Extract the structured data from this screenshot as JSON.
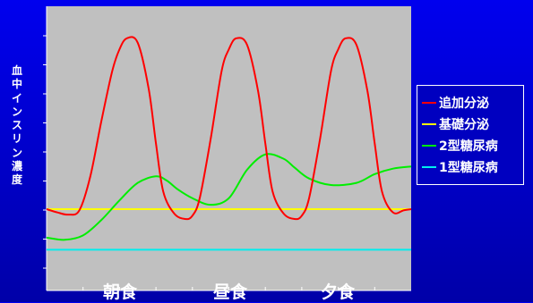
{
  "chart_data": {
    "type": "line",
    "ylabel": "血中インスリン濃度",
    "xticks": [
      {
        "label": "朝食",
        "x": 2.5
      },
      {
        "label": "昼食",
        "x": 5.5
      },
      {
        "label": "夕食",
        "x": 8.5
      }
    ],
    "xlim": [
      0,
      10
    ],
    "ylim": [
      0,
      10
    ],
    "grid": false,
    "legend_position": "right",
    "series": [
      {
        "name": "追加分泌",
        "color": "#ff0000",
        "x": [
          0,
          0.3,
          0.6,
          0.9,
          1.2,
          1.5,
          1.8,
          2.0,
          2.2,
          2.5,
          2.8,
          3.0,
          3.2,
          3.5,
          3.8,
          4.0,
          4.2,
          4.5,
          4.8,
          5.0,
          5.2,
          5.5,
          5.8,
          6.0,
          6.2,
          6.5,
          6.8,
          7.0,
          7.2,
          7.5,
          7.8,
          8.0,
          8.2,
          8.5,
          8.8,
          9.0,
          9.2,
          9.5,
          9.8,
          10
        ],
        "y": [
          2.0,
          1.85,
          1.75,
          1.95,
          3.5,
          6.0,
          8.3,
          9.3,
          9.8,
          9.6,
          7.5,
          5.0,
          2.8,
          1.8,
          1.55,
          1.7,
          2.5,
          5.2,
          8.3,
          9.3,
          9.8,
          9.5,
          7.4,
          5.0,
          2.8,
          1.8,
          1.55,
          1.7,
          2.5,
          5.2,
          8.3,
          9.3,
          9.8,
          9.5,
          7.4,
          5.0,
          2.8,
          1.85,
          1.95,
          2.0
        ]
      },
      {
        "name": "基礎分泌",
        "color": "#ffff00",
        "x": [
          0,
          10
        ],
        "y": [
          2.0,
          2.0
        ]
      },
      {
        "name": "2型糖尿病",
        "color": "#00ee00",
        "x": [
          0,
          0.5,
          1.0,
          1.5,
          2.0,
          2.5,
          3.0,
          3.3,
          3.6,
          4.0,
          4.5,
          5.0,
          5.5,
          6.0,
          6.5,
          6.8,
          7.2,
          7.8,
          8.5,
          9.0,
          9.5,
          10
        ],
        "y": [
          0.7,
          0.6,
          0.8,
          1.5,
          2.4,
          3.2,
          3.5,
          3.3,
          2.9,
          2.5,
          2.2,
          2.5,
          3.8,
          4.5,
          4.3,
          3.9,
          3.4,
          3.1,
          3.2,
          3.6,
          3.85,
          3.95
        ]
      },
      {
        "name": "1型糖尿病",
        "color": "#00eeee",
        "x": [
          0,
          10
        ],
        "y": [
          0.15,
          0.15
        ]
      }
    ]
  }
}
